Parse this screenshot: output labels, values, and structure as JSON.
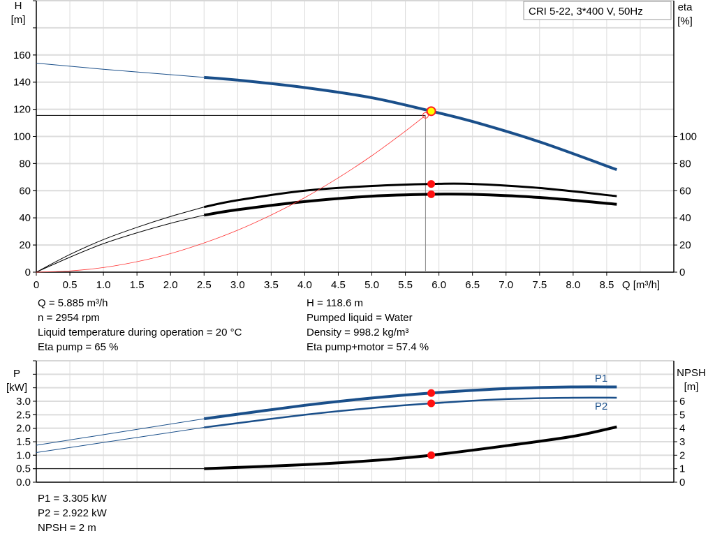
{
  "title_box": "CRI 5-22, 3*400 V, 50Hz",
  "chart_data": [
    {
      "type": "line",
      "ylabel_left": [
        "H",
        "[m]"
      ],
      "ylabel_right": [
        "eta",
        "[%]"
      ],
      "xlabel": "Q [m³/h]",
      "xlim": [
        0,
        9.5
      ],
      "ylim": [
        0,
        200
      ],
      "x_ticks": [
        "0",
        "0.5",
        "1.0",
        "1.5",
        "2.0",
        "2.5",
        "3.0",
        "3.5",
        "4.0",
        "4.5",
        "5.0",
        "5.5",
        "6.0",
        "6.5",
        "7.0",
        "7.5",
        "8.0",
        "8.5"
      ],
      "y_ticks_left": [
        "0",
        "20",
        "40",
        "60",
        "80",
        "100",
        "120",
        "140",
        "160"
      ],
      "y_ticks_right": [
        "0",
        "20",
        "40",
        "60",
        "80",
        "100"
      ],
      "grid": true,
      "series": [
        {
          "id": "head",
          "color": "#1a4f8a",
          "x": [
            0,
            1,
            2,
            2.5,
            3,
            4,
            5,
            5.885,
            6.5,
            7.5,
            8.65
          ],
          "y": [
            154,
            149.5,
            145.5,
            143.5,
            141.5,
            136,
            128.5,
            118.6,
            111,
            96,
            75.5
          ],
          "thin_until": 2.5
        },
        {
          "id": "eta-pump",
          "color": "#000000",
          "x": [
            0,
            0.5,
            1,
            1.5,
            2,
            2.5,
            3,
            4,
            5,
            5.885,
            6.5,
            7.5,
            8.65
          ],
          "y": [
            0,
            13,
            24,
            33,
            41,
            48,
            53,
            60,
            63.5,
            65,
            65,
            62,
            56
          ],
          "thin_until": 2.5
        },
        {
          "id": "eta-total",
          "color": "#000000",
          "x": [
            0,
            0.5,
            1,
            1.5,
            2,
            2.5,
            3,
            4,
            5,
            5.885,
            6.5,
            7.5,
            8.65
          ],
          "y": [
            0,
            11,
            21,
            29,
            36,
            42,
            46,
            52,
            56,
            57.4,
            57.3,
            55,
            50
          ],
          "thin_until": 2.5
        },
        {
          "id": "system-curve",
          "color": "#ff3030",
          "x": [
            0,
            0.5,
            1,
            1.5,
            2,
            2.5,
            3,
            3.5,
            4,
            4.5,
            5,
            5.5,
            5.8
          ],
          "y": [
            0,
            0.9,
            3.4,
            7.7,
            13.7,
            21.5,
            30.9,
            42.1,
            54.9,
            69.5,
            85.8,
            103.9,
            115.5
          ]
        }
      ],
      "duty_point": {
        "Q": 5.885,
        "H": 118.6,
        "eta_pump": 65,
        "eta_total": 57.4
      },
      "requested_point": {
        "Q": 5.8,
        "H": 115.5
      }
    },
    {
      "type": "line",
      "ylabel_left": [
        "P",
        "[kW]"
      ],
      "ylabel_right": [
        "NPSH",
        "[m]"
      ],
      "xlim": [
        0,
        9.5
      ],
      "ylim": [
        0,
        4.5
      ],
      "y_ticks_left": [
        "0.0",
        "0.5",
        "1.0",
        "1.5",
        "2.0",
        "2.5",
        "3.0"
      ],
      "y_ticks_right": [
        "0",
        "1",
        "2",
        "3",
        "4",
        "5",
        "6"
      ],
      "grid": true,
      "series": [
        {
          "id": "P1",
          "name": "P1",
          "color": "#1a4f8a",
          "x": [
            0,
            2.5,
            4,
            5,
            5.885,
            7,
            8,
            8.65
          ],
          "y": [
            1.37,
            2.35,
            2.85,
            3.12,
            3.305,
            3.47,
            3.53,
            3.53
          ],
          "thin_until": 2.5
        },
        {
          "id": "P2",
          "name": "P2",
          "color": "#1a4f8a",
          "x": [
            0,
            2.5,
            4,
            5,
            5.885,
            7,
            8,
            8.65
          ],
          "y": [
            1.1,
            2.03,
            2.5,
            2.75,
            2.922,
            3.08,
            3.13,
            3.13
          ],
          "thin_until": 2.5
        },
        {
          "id": "NPSH",
          "color": "#000000",
          "axis": "right",
          "x": [
            0,
            2.5,
            4,
            5,
            5.885,
            7,
            8,
            8.65
          ],
          "y": [
            1,
            1,
            1.3,
            1.6,
            2,
            2.7,
            3.4,
            4.1
          ],
          "thin_until": 2.5
        }
      ]
    }
  ],
  "info_top_left": [
    "Q = 5.885 m³/h",
    "n = 2954 rpm",
    "Liquid temperature during operation = 20 °C",
    "Eta pump = 65 %"
  ],
  "info_top_right": [
    "H = 118.6 m",
    "Pumped liquid = Water",
    "Density = 998.2 kg/m³",
    "Eta pump+motor = 57.4 %"
  ],
  "info_bottom": [
    "P1 = 3.305 kW",
    "P2 = 2.922 kW",
    "NPSH = 2 m"
  ]
}
